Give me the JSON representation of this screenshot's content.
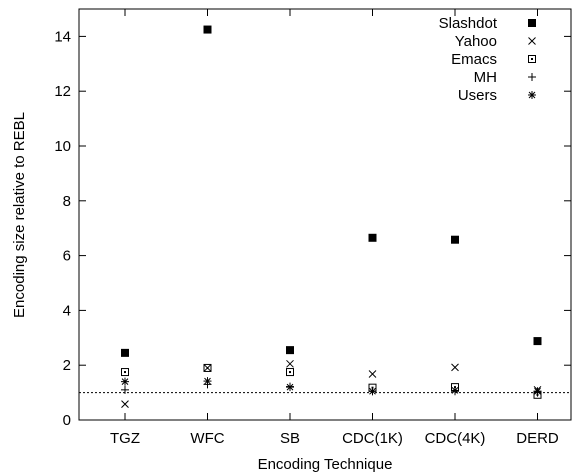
{
  "chart_data": {
    "type": "scatter",
    "title": "",
    "xlabel": "Encoding Technique",
    "ylabel": "Encoding size relative to REBL",
    "categories": [
      "TGZ",
      "WFC",
      "SB",
      "CDC(1K)",
      "CDC(4K)",
      "DERD"
    ],
    "ylim": [
      0,
      15
    ],
    "yticks": [
      0,
      2,
      4,
      6,
      8,
      10,
      12,
      14
    ],
    "reference_line": 1,
    "grid": false,
    "legend_position": "top-right",
    "series": [
      {
        "name": "Slashdot",
        "marker": "filled-square",
        "values": [
          2.45,
          14.25,
          2.55,
          6.65,
          6.58,
          2.88
        ]
      },
      {
        "name": "Yahoo",
        "marker": "x",
        "values": [
          0.58,
          1.9,
          2.05,
          1.68,
          1.92,
          1.1
        ]
      },
      {
        "name": "Emacs",
        "marker": "dotted-square",
        "values": [
          1.75,
          1.9,
          1.75,
          1.18,
          1.2,
          0.92
        ]
      },
      {
        "name": "MH",
        "marker": "plus",
        "values": [
          1.1,
          1.3,
          1.22,
          1.05,
          1.05,
          1.0
        ]
      },
      {
        "name": "Users",
        "marker": "asterisk",
        "values": [
          1.4,
          1.42,
          1.2,
          1.05,
          1.08,
          1.05
        ]
      }
    ]
  }
}
